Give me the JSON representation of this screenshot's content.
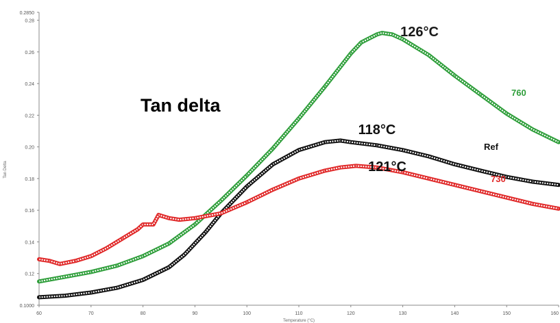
{
  "chart_data": {
    "type": "line",
    "title": "Tan delta",
    "xlabel": "Temperature (°C)",
    "ylabel": "Tan Delta",
    "xlim": [
      60,
      160
    ],
    "ylim": [
      0.1,
      0.285
    ],
    "x_ticks": [
      "60",
      "70",
      "80",
      "90",
      "100",
      "110",
      "120",
      "130",
      "140",
      "150",
      "160"
    ],
    "y_ticks": [
      {
        "value": 0.1,
        "label": "0.1000"
      },
      {
        "value": 0.12,
        "label": "0.12"
      },
      {
        "value": 0.14,
        "label": "0.14"
      },
      {
        "value": 0.16,
        "label": "0.16"
      },
      {
        "value": 0.18,
        "label": "0.18"
      },
      {
        "value": 0.2,
        "label": "0.20"
      },
      {
        "value": 0.22,
        "label": "0.22"
      },
      {
        "value": 0.24,
        "label": "0.24"
      },
      {
        "value": 0.26,
        "label": "0.26"
      },
      {
        "value": 0.28,
        "label": "0.28"
      },
      {
        "value": 0.285,
        "label": "0.2850"
      }
    ],
    "grid": false,
    "legend": "none",
    "series": [
      {
        "name": "760",
        "color": "#2e9e3a",
        "x": [
          60,
          65,
          70,
          75,
          80,
          85,
          90,
          95,
          100,
          105,
          110,
          115,
          120,
          122,
          125,
          126,
          128,
          130,
          135,
          140,
          145,
          150,
          155,
          160
        ],
        "y": [
          0.115,
          0.118,
          0.121,
          0.125,
          0.131,
          0.139,
          0.151,
          0.166,
          0.182,
          0.199,
          0.218,
          0.238,
          0.259,
          0.266,
          0.271,
          0.272,
          0.271,
          0.268,
          0.258,
          0.245,
          0.233,
          0.221,
          0.211,
          0.203
        ],
        "peak_label": "126°C",
        "end_label": "760"
      },
      {
        "name": "Ref",
        "color": "#111111",
        "x": [
          60,
          65,
          70,
          75,
          80,
          85,
          88,
          90,
          92,
          95,
          100,
          105,
          110,
          115,
          118,
          120,
          125,
          130,
          135,
          140,
          145,
          150,
          155,
          160
        ],
        "y": [
          0.105,
          0.106,
          0.108,
          0.111,
          0.116,
          0.124,
          0.132,
          0.139,
          0.146,
          0.158,
          0.175,
          0.189,
          0.198,
          0.203,
          0.204,
          0.203,
          0.201,
          0.198,
          0.194,
          0.189,
          0.185,
          0.181,
          0.178,
          0.176
        ],
        "peak_label": "118°C",
        "end_label": "Ref"
      },
      {
        "name": "730",
        "color": "#e02828",
        "x": [
          60,
          62,
          64,
          67,
          70,
          73,
          76,
          79,
          80,
          82,
          83,
          85,
          87,
          90,
          95,
          100,
          105,
          110,
          115,
          118,
          121,
          125,
          130,
          135,
          140,
          145,
          150,
          155,
          160
        ],
        "y": [
          0.129,
          0.128,
          0.126,
          0.128,
          0.131,
          0.136,
          0.142,
          0.148,
          0.151,
          0.151,
          0.157,
          0.155,
          0.154,
          0.155,
          0.158,
          0.165,
          0.173,
          0.18,
          0.185,
          0.187,
          0.188,
          0.187,
          0.184,
          0.18,
          0.176,
          0.172,
          0.168,
          0.164,
          0.161
        ],
        "peak_label": "121°C",
        "end_label": "730"
      }
    ]
  }
}
